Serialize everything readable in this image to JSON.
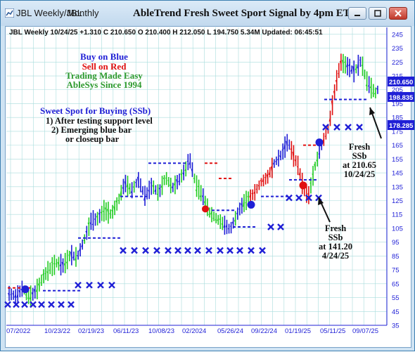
{
  "window": {
    "tabs": [
      "JBL Weekly/JBL",
      "Monthly"
    ],
    "title": "AbleTrend Fresh Sweet Sport Signal by 4pm ET",
    "controls": [
      "minimize",
      "restore",
      "close"
    ]
  },
  "quote": {
    "text": "JBL  Weekly 10/24/25 +1.310 C 210.650 O 210.400 H 212.050 L 194.750 5.34M Updated: 06:45:51"
  },
  "legend": {
    "buy": "Buy on Blue",
    "sell": "Sell on Red",
    "easy": "Trading Made Easy",
    "since": "AbleSys Since 1994",
    "colors": {
      "blue": "#1f1fd6",
      "red": "#e01010",
      "green": "#2e9a2e"
    }
  },
  "sweet_spot": {
    "title": "Sweet Spot for Buying (SSb)",
    "line1": "1) After testing support level",
    "line2": "2) Emerging blue bar",
    "line3": "or closeup bar"
  },
  "annotations": {
    "first": [
      "Fresh",
      "SSb",
      "at 141.20",
      "4/24/25"
    ],
    "second": [
      "Fresh",
      "SSb",
      "at 210.65",
      "10/24/25"
    ]
  },
  "chart_data": {
    "type": "bar",
    "series": [
      {
        "name": "JBL Weekly",
        "last": 210.65
      }
    ],
    "price_labels": {
      "last": "210.650",
      "support": "198.835",
      "level": "178.285"
    },
    "y_ticks": [
      "245",
      "235",
      "225",
      "215",
      "205",
      "195",
      "185",
      "175",
      "165",
      "155",
      "145",
      "135",
      "125",
      "115",
      "105",
      "95",
      "85",
      "75",
      "65",
      "55",
      "45",
      "35"
    ],
    "x_ticks": [
      "07/2022",
      "10/23/22",
      "02/19/23",
      "06/11/23",
      "10/08/23",
      "02/2024",
      "05/26/24",
      "09/22/24",
      "01/19/25",
      "05/11/25",
      "09/07/25"
    ],
    "ylim": [
      35,
      250
    ],
    "grid": true,
    "colors": {
      "up": "#22cc22",
      "down": "#e01010",
      "neutral": "#1f1fd6",
      "grid": "#a8dcdc"
    }
  }
}
